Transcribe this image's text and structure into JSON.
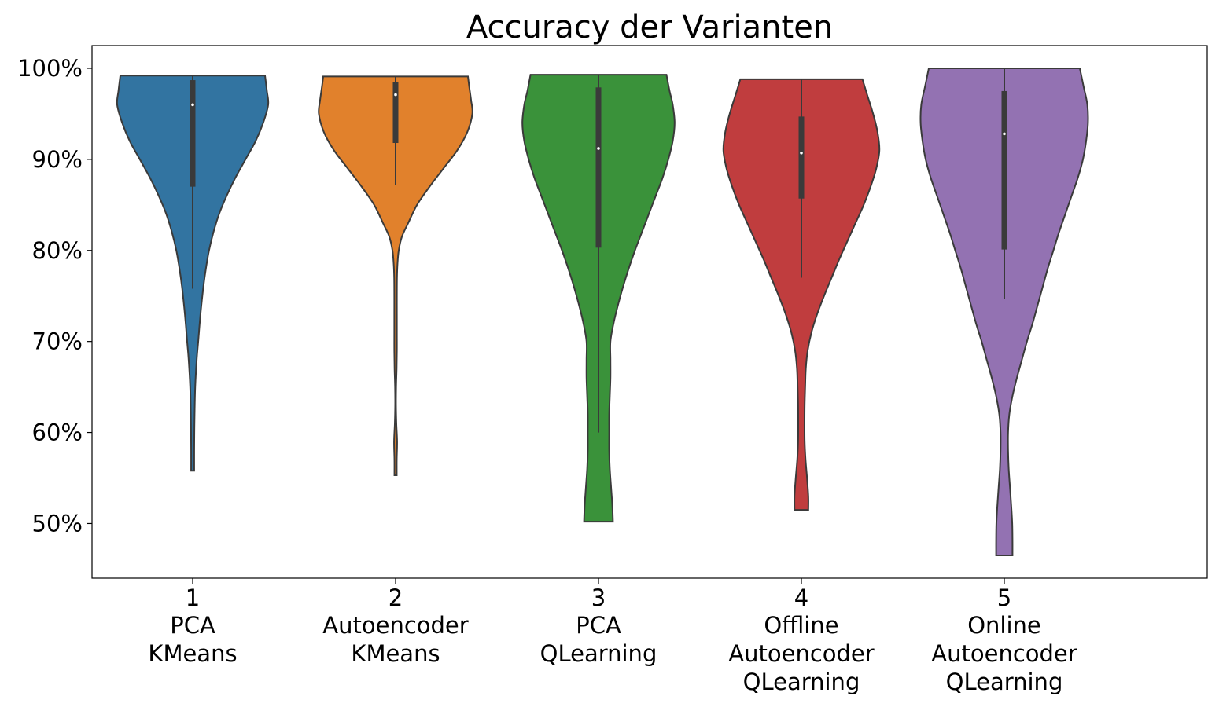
{
  "chart_data": {
    "type": "violin",
    "title": "Accuracy der Varianten",
    "xlabel": "",
    "ylabel": "",
    "ylim": [
      44,
      102.5
    ],
    "yticks": [
      {
        "value": 50,
        "label": "50%"
      },
      {
        "value": 60,
        "label": "60%"
      },
      {
        "value": 70,
        "label": "70%"
      },
      {
        "value": 80,
        "label": "80%"
      },
      {
        "value": 90,
        "label": "90%"
      },
      {
        "value": 100,
        "label": "100%"
      }
    ],
    "grid": false,
    "categories": [
      {
        "index": "1",
        "lines": [
          "PCA",
          "KMeans"
        ],
        "color": "#3274a1",
        "min": 55.8,
        "max": 99.2,
        "q1": 87.0,
        "median": 96.0,
        "q3": 98.7,
        "whisker_low": 75.8,
        "whisker_high": 99.2,
        "profile": [
          [
            55.8,
            1.2
          ],
          [
            58,
            1.2
          ],
          [
            60,
            1.3
          ],
          [
            62,
            1.5
          ],
          [
            65,
            2.0
          ],
          [
            68,
            3.2
          ],
          [
            70,
            4.4
          ],
          [
            73,
            6.2
          ],
          [
            76,
            8.5
          ],
          [
            78,
            10.5
          ],
          [
            80,
            13.0
          ],
          [
            82,
            16.5
          ],
          [
            84,
            21.0
          ],
          [
            86,
            27.0
          ],
          [
            88,
            34.0
          ],
          [
            90,
            42.0
          ],
          [
            92,
            50.0
          ],
          [
            94,
            56.0
          ],
          [
            96,
            60.0
          ],
          [
            97.5,
            59.0
          ],
          [
            99.2,
            57.5
          ]
        ]
      },
      {
        "index": "2",
        "lines": [
          "Autoencoder",
          "KMeans"
        ],
        "color": "#e1812c",
        "min": 55.3,
        "max": 99.1,
        "q1": 91.8,
        "median": 97.1,
        "q3": 98.5,
        "whisker_low": 87.2,
        "whisker_high": 99.1,
        "profile": [
          [
            55.3,
            0.9
          ],
          [
            57,
            0.9
          ],
          [
            59,
            1.2
          ],
          [
            61,
            0.6
          ],
          [
            63,
            0.3
          ],
          [
            65,
            0.4
          ],
          [
            67,
            0.8
          ],
          [
            69,
            1.0
          ],
          [
            71,
            1.0
          ],
          [
            73,
            1.0
          ],
          [
            75,
            1.0
          ],
          [
            77,
            1.1
          ],
          [
            78.5,
            1.5
          ],
          [
            80,
            2.5
          ],
          [
            81.5,
            5.0
          ],
          [
            83,
            10.0
          ],
          [
            85,
            17.0
          ],
          [
            87,
            27.0
          ],
          [
            89,
            38.0
          ],
          [
            91,
            49.0
          ],
          [
            93,
            57.0
          ],
          [
            95,
            61.0
          ],
          [
            96.5,
            60.0
          ],
          [
            98,
            58.5
          ],
          [
            99.1,
            57.5
          ]
        ]
      },
      {
        "index": "3",
        "lines": [
          "PCA",
          "QLearning"
        ],
        "color": "#3a923a",
        "min": 50.2,
        "max": 99.3,
        "q1": 80.3,
        "median": 91.2,
        "q3": 97.9,
        "whisker_low": 60.0,
        "whisker_high": 99.3,
        "profile": [
          [
            50.2,
            11.5
          ],
          [
            52,
            11.0
          ],
          [
            54,
            10.0
          ],
          [
            56,
            9.0
          ],
          [
            58,
            8.5
          ],
          [
            60,
            8.5
          ],
          [
            62,
            8.5
          ],
          [
            64,
            9.0
          ],
          [
            66,
            9.5
          ],
          [
            68,
            9.5
          ],
          [
            70,
            9.5
          ],
          [
            72,
            12.0
          ],
          [
            74,
            15.5
          ],
          [
            76,
            19.5
          ],
          [
            78,
            24.0
          ],
          [
            80,
            29.0
          ],
          [
            82,
            34.5
          ],
          [
            84,
            40.0
          ],
          [
            86,
            45.5
          ],
          [
            88,
            51.0
          ],
          [
            90,
            55.5
          ],
          [
            92,
            59.0
          ],
          [
            94,
            60.5
          ],
          [
            96,
            59.0
          ],
          [
            97.5,
            56.5
          ],
          [
            99.3,
            54.0
          ]
        ]
      },
      {
        "index": "4",
        "lines": [
          "Offline",
          "Autoencoder",
          "QLearning"
        ],
        "color": "#c03d3e",
        "min": 51.5,
        "max": 98.8,
        "q1": 85.7,
        "median": 90.7,
        "q3": 94.7,
        "whisker_low": 77.0,
        "whisker_high": 98.8,
        "profile": [
          [
            51.5,
            5.5
          ],
          [
            53,
            5.5
          ],
          [
            55,
            4.5
          ],
          [
            57,
            3.3
          ],
          [
            59,
            2.6
          ],
          [
            61,
            2.5
          ],
          [
            63,
            2.6
          ],
          [
            65,
            3.0
          ],
          [
            67,
            3.5
          ],
          [
            69,
            5.0
          ],
          [
            71,
            8.0
          ],
          [
            73,
            12.5
          ],
          [
            75,
            18.0
          ],
          [
            77,
            24.0
          ],
          [
            79,
            30.0
          ],
          [
            81,
            36.5
          ],
          [
            83,
            43.0
          ],
          [
            85,
            49.5
          ],
          [
            87,
            55.0
          ],
          [
            89,
            59.5
          ],
          [
            91,
            62.0
          ],
          [
            93,
            60.5
          ],
          [
            95,
            57.0
          ],
          [
            97,
            52.5
          ],
          [
            98.8,
            48.5
          ]
        ]
      },
      {
        "index": "5",
        "lines": [
          "Online",
          "Autoencoder",
          "QLearning"
        ],
        "color": "#9372b2",
        "min": 46.5,
        "max": 100.0,
        "q1": 80.1,
        "median": 92.8,
        "q3": 97.5,
        "whisker_low": 74.7,
        "whisker_high": 100.0,
        "profile": [
          [
            46.5,
            6.5
          ],
          [
            48,
            6.5
          ],
          [
            50,
            6.3
          ],
          [
            52,
            5.5
          ],
          [
            54,
            4.5
          ],
          [
            56,
            3.5
          ],
          [
            58,
            3.0
          ],
          [
            60,
            3.0
          ],
          [
            62,
            4.0
          ],
          [
            64,
            6.5
          ],
          [
            66,
            10.0
          ],
          [
            68,
            14.0
          ],
          [
            70,
            18.0
          ],
          [
            72,
            22.5
          ],
          [
            74,
            26.5
          ],
          [
            76,
            30.5
          ],
          [
            78,
            34.5
          ],
          [
            80,
            39.0
          ],
          [
            82,
            43.5
          ],
          [
            84,
            48.5
          ],
          [
            86,
            53.5
          ],
          [
            88,
            58.5
          ],
          [
            90,
            62.5
          ],
          [
            92,
            65.0
          ],
          [
            94,
            66.5
          ],
          [
            96,
            66.0
          ],
          [
            98,
            63.0
          ],
          [
            100,
            60.0
          ]
        ]
      }
    ]
  }
}
